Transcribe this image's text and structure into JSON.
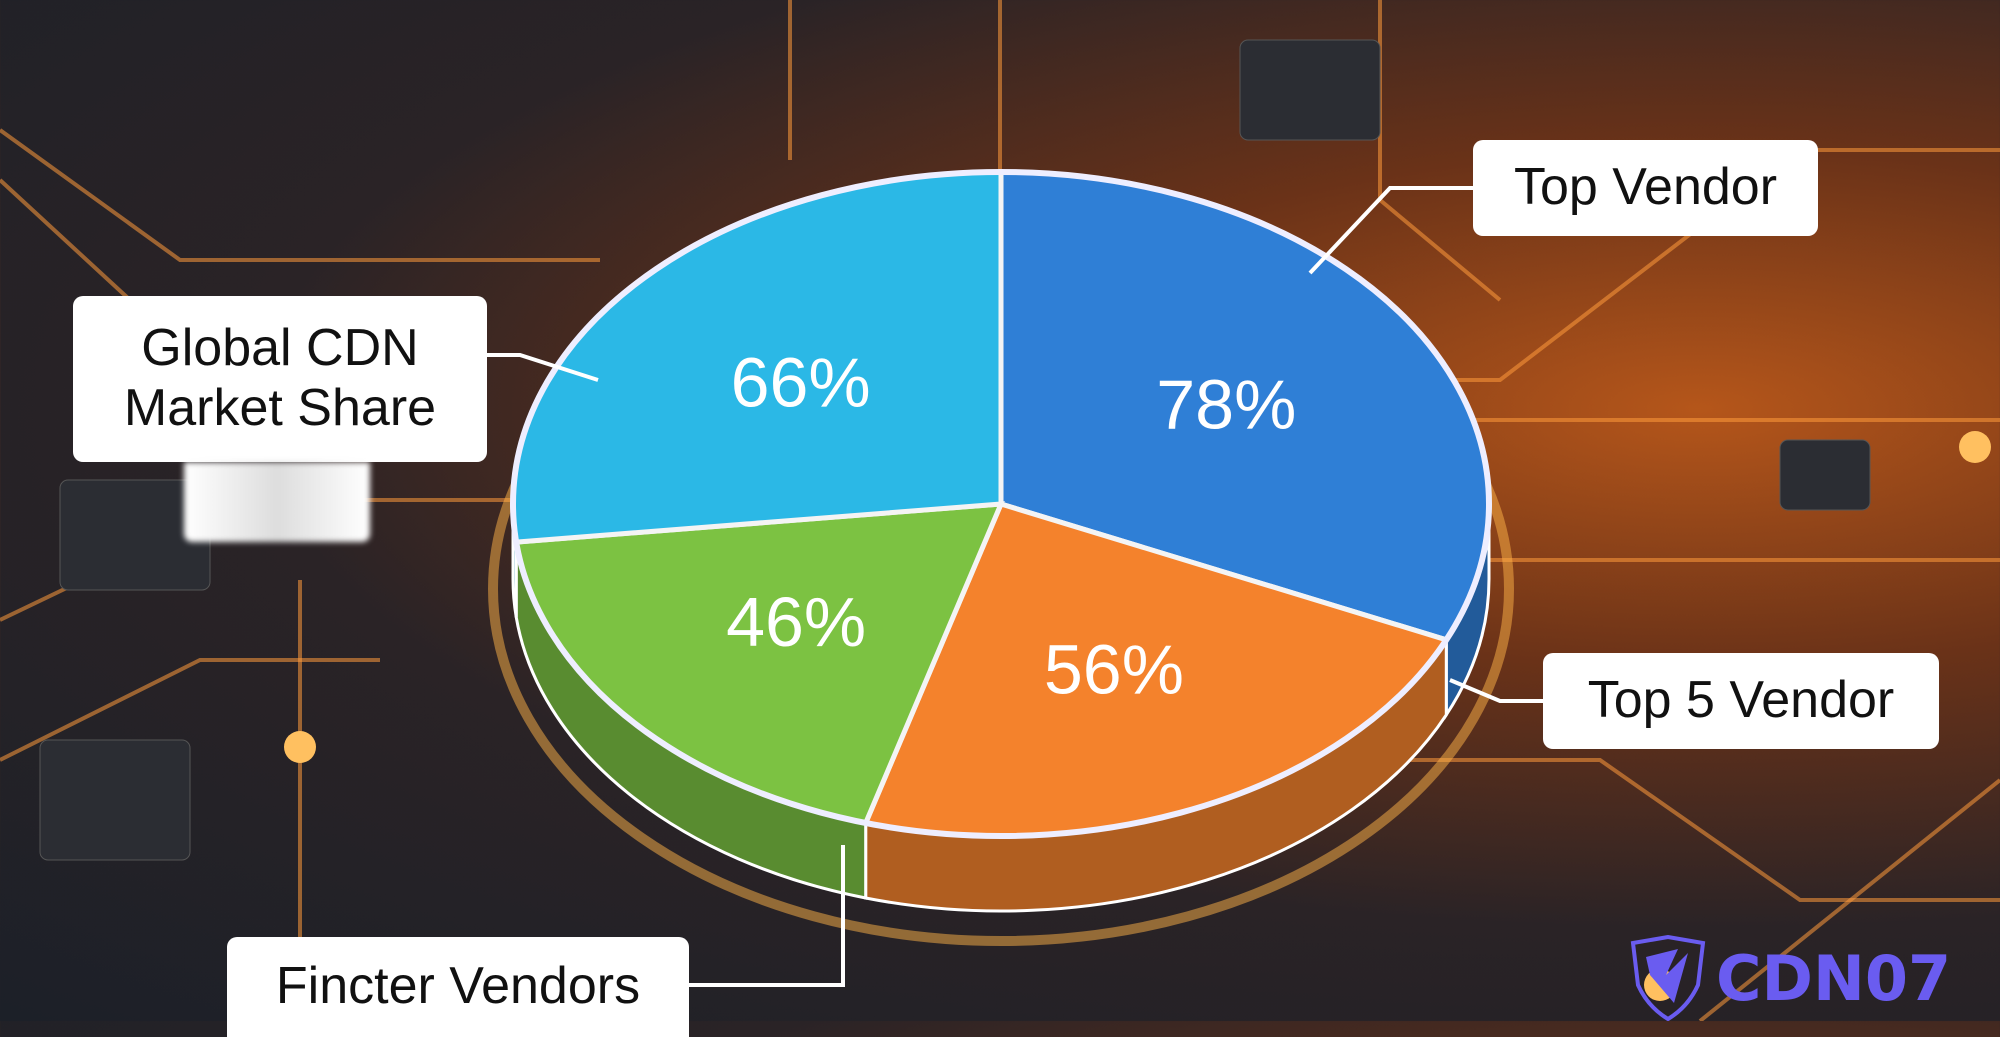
{
  "chart_data": {
    "type": "pie",
    "style": "3d",
    "title": "Global CDN Market Share",
    "slices": [
      {
        "label": "Top Vendor",
        "value": 78,
        "value_label": "78%",
        "color": "#2f7fd6"
      },
      {
        "label": "Top 5 Vendor",
        "value": 56,
        "value_label": "56%",
        "color": "#f4822c"
      },
      {
        "label": "Fincter Vendors",
        "value": 46,
        "value_label": "46%",
        "color": "#7cc242"
      },
      {
        "label": "",
        "value": 66,
        "value_label": "66%",
        "color": "#2bb8e6"
      }
    ]
  },
  "brand": {
    "logo_text": "CDN07",
    "logo_icon": "shield-check-icon",
    "color": "#6a5cf0"
  }
}
